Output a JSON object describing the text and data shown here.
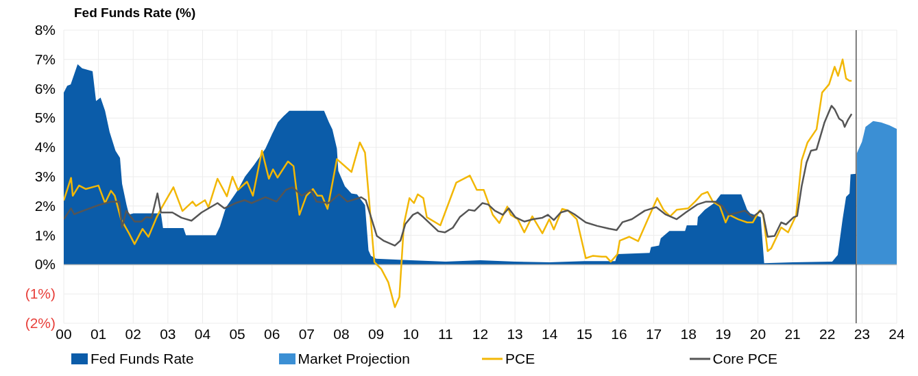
{
  "chart_data": {
    "type": "area",
    "title": "Fed Funds Rate (%)",
    "xlim": [
      2000,
      2024
    ],
    "xticks": [
      {
        "value": 2000,
        "label": "00"
      },
      {
        "value": 2001,
        "label": "01"
      },
      {
        "value": 2002,
        "label": "02"
      },
      {
        "value": 2003,
        "label": "03"
      },
      {
        "value": 2004,
        "label": "04"
      },
      {
        "value": 2005,
        "label": "05"
      },
      {
        "value": 2006,
        "label": "06"
      },
      {
        "value": 2007,
        "label": "07"
      },
      {
        "value": 2008,
        "label": "08"
      },
      {
        "value": 2009,
        "label": "09"
      },
      {
        "value": 2010,
        "label": "10"
      },
      {
        "value": 2011,
        "label": "11"
      },
      {
        "value": 2012,
        "label": "12"
      },
      {
        "value": 2013,
        "label": "13"
      },
      {
        "value": 2014,
        "label": "14"
      },
      {
        "value": 2015,
        "label": "15"
      },
      {
        "value": 2016,
        "label": "16"
      },
      {
        "value": 2017,
        "label": "17"
      },
      {
        "value": 2018,
        "label": "18"
      },
      {
        "value": 2019,
        "label": "19"
      },
      {
        "value": 2020,
        "label": "20"
      },
      {
        "value": 2021,
        "label": "21"
      },
      {
        "value": 2022,
        "label": "22"
      },
      {
        "value": 2023,
        "label": "23"
      },
      {
        "value": 2024,
        "label": "24"
      }
    ],
    "ylim": [
      -2,
      8
    ],
    "yticks": [
      {
        "value": -2,
        "label": "(2%)"
      },
      {
        "value": -1,
        "label": "(1%)"
      },
      {
        "value": 0,
        "label": "0%"
      },
      {
        "value": 1,
        "label": "1%"
      },
      {
        "value": 2,
        "label": "2%"
      },
      {
        "value": 3,
        "label": "3%"
      },
      {
        "value": 4,
        "label": "4%"
      },
      {
        "value": 5,
        "label": "5%"
      },
      {
        "value": 6,
        "label": "6%"
      },
      {
        "value": 7,
        "label": "7%"
      },
      {
        "value": 8,
        "label": "8%"
      }
    ],
    "grid": true,
    "legend": "bottom",
    "ref_lines": [
      {
        "axis": "x",
        "value": 2022.83,
        "color": "#555555"
      }
    ],
    "series": [
      {
        "name": "Fed Funds Rate",
        "color": "#0b5ca9",
        "x": [
          2000,
          2000.1,
          2000.2,
          2000.4,
          2000.53,
          2000.83,
          2000.93,
          2001.06,
          2001.19,
          2001.32,
          2001.49,
          2001.62,
          2001.68,
          2001.81,
          2001.88,
          2002.01,
          2002.8,
          2002.86,
          2003.2,
          2003.45,
          2003.52,
          2004.38,
          2004.5,
          2004.67,
          2005.02,
          2005.22,
          2005.48,
          2005.81,
          2006.0,
          2006.17,
          2006.33,
          2006.5,
          2007.5,
          2007.64,
          2007.74,
          2007.87,
          2007.91,
          2008.1,
          2008.29,
          2008.45,
          2008.68,
          2008.78,
          2008.85,
          2009.0,
          2010,
          2011,
          2012,
          2013,
          2014,
          2015,
          2015.89,
          2015.95,
          2016.88,
          2016.92,
          2017.15,
          2017.2,
          2017.45,
          2017.9,
          2017.95,
          2018.25,
          2018.27,
          2018.47,
          2018.74,
          2018.93,
          2019.52,
          2019.69,
          2019.78,
          2020.08,
          2020.18,
          2021,
          2022.14,
          2022.3,
          2022.44,
          2022.54,
          2022.64,
          2022.67,
          2022.83
        ],
        "values": [
          5.87,
          6.1,
          6.15,
          6.84,
          6.7,
          6.6,
          5.58,
          5.7,
          5.25,
          4.53,
          3.89,
          3.64,
          2.76,
          2.03,
          1.71,
          1.75,
          1.75,
          1.25,
          1.25,
          1.25,
          1.0,
          1.0,
          1.3,
          1.95,
          2.55,
          3.0,
          3.4,
          3.96,
          4.45,
          4.86,
          5.06,
          5.25,
          5.25,
          4.86,
          4.61,
          3.96,
          3.2,
          2.67,
          2.43,
          2.4,
          2.03,
          0.49,
          0.3,
          0.2,
          0.15,
          0.1,
          0.15,
          0.1,
          0.08,
          0.12,
          0.12,
          0.36,
          0.4,
          0.6,
          0.65,
          0.9,
          1.15,
          1.15,
          1.34,
          1.34,
          1.62,
          1.87,
          2.1,
          2.4,
          2.4,
          1.87,
          1.75,
          1.62,
          0.05,
          0.08,
          0.1,
          0.33,
          1.55,
          2.31,
          2.43,
          3.08,
          3.1
        ]
      },
      {
        "name": "Market Projection",
        "color": "#3b8fd4",
        "x": [
          2022.85,
          2023.0,
          2023.1,
          2023.32,
          2023.55,
          2023.79,
          2024.0
        ],
        "values": [
          3.8,
          4.2,
          4.7,
          4.9,
          4.85,
          4.75,
          4.63
        ]
      },
      {
        "name": "PCE",
        "type": "line",
        "color": "#f2b705",
        "x": [
          2000.0,
          2000.21,
          2000.26,
          2000.44,
          2000.63,
          2001.0,
          2001.19,
          2001.36,
          2001.47,
          2001.65,
          2001.88,
          2002.04,
          2002.27,
          2002.44,
          2002.67,
          2002.8,
          2003.16,
          2003.42,
          2003.71,
          2003.81,
          2004.07,
          2004.17,
          2004.43,
          2004.7,
          2004.86,
          2005.02,
          2005.28,
          2005.45,
          2005.71,
          2005.91,
          2006.03,
          2006.16,
          2006.46,
          2006.62,
          2006.79,
          2006.99,
          2007.18,
          2007.31,
          2007.44,
          2007.6,
          2007.87,
          2008.29,
          2008.53,
          2008.68,
          2008.95,
          2009.15,
          2009.35,
          2009.54,
          2009.67,
          2009.8,
          2009.96,
          2010.09,
          2010.2,
          2010.36,
          2010.46,
          2010.85,
          2011.31,
          2011.7,
          2011.9,
          2012.1,
          2012.36,
          2012.55,
          2012.78,
          2012.88,
          2013.08,
          2013.27,
          2013.5,
          2013.79,
          2013.99,
          2014.12,
          2014.36,
          2014.52,
          2014.78,
          2015.04,
          2015.24,
          2015.5,
          2015.63,
          2015.76,
          2015.95,
          2016.02,
          2016.29,
          2016.55,
          2016.81,
          2017.1,
          2017.28,
          2017.47,
          2017.66,
          2017.99,
          2018.19,
          2018.38,
          2018.55,
          2018.7,
          2018.9,
          2019.07,
          2019.17,
          2019.43,
          2019.69,
          2019.85,
          2020.05,
          2020.15,
          2020.28,
          2020.38,
          2020.67,
          2020.87,
          2021.1,
          2021.26,
          2021.43,
          2021.69,
          2021.85,
          2022.05,
          2022.21,
          2022.31,
          2022.44,
          2022.54,
          2022.64,
          2022.7
        ],
        "values": [
          2.19,
          2.96,
          2.35,
          2.7,
          2.58,
          2.7,
          2.1,
          2.52,
          2.35,
          1.55,
          1.07,
          0.7,
          1.22,
          0.95,
          1.6,
          1.9,
          2.64,
          1.83,
          2.15,
          2.0,
          2.2,
          1.95,
          2.93,
          2.33,
          3.0,
          2.55,
          2.83,
          2.35,
          3.89,
          2.93,
          3.25,
          2.97,
          3.52,
          3.36,
          1.7,
          2.35,
          2.58,
          2.35,
          2.35,
          1.9,
          3.6,
          3.16,
          4.17,
          3.82,
          0.09,
          -0.15,
          -0.6,
          -1.45,
          -1.1,
          1.38,
          2.27,
          2.1,
          2.4,
          2.27,
          1.62,
          1.34,
          2.8,
          3.04,
          2.55,
          2.55,
          1.7,
          1.42,
          1.98,
          1.7,
          1.55,
          1.1,
          1.65,
          1.07,
          1.55,
          1.2,
          1.9,
          1.85,
          1.55,
          0.22,
          0.3,
          0.27,
          0.27,
          0.1,
          0.35,
          0.82,
          0.95,
          0.8,
          1.5,
          2.27,
          1.87,
          1.65,
          1.87,
          1.92,
          2.15,
          2.4,
          2.48,
          2.15,
          2.0,
          1.44,
          1.7,
          1.55,
          1.44,
          1.44,
          1.85,
          1.72,
          0.46,
          0.55,
          1.27,
          1.1,
          1.68,
          3.56,
          4.17,
          4.62,
          5.87,
          6.15,
          6.75,
          6.44,
          7.0,
          6.35,
          6.27,
          6.27
        ]
      },
      {
        "name": "Core PCE",
        "type": "line",
        "color": "#555555",
        "x": [
          2000.0,
          2000.21,
          2000.3,
          2000.63,
          2001.0,
          2001.36,
          2001.6,
          2001.68,
          2001.8,
          2002.04,
          2002.24,
          2002.37,
          2002.53,
          2002.7,
          2002.8,
          2003.13,
          2003.39,
          2003.68,
          2003.97,
          2004.43,
          2004.63,
          2004.95,
          2005.21,
          2005.41,
          2005.81,
          2006.13,
          2006.4,
          2006.59,
          2006.86,
          2007.12,
          2007.28,
          2007.64,
          2007.93,
          2008.17,
          2008.57,
          2008.7,
          2009.02,
          2009.21,
          2009.54,
          2009.7,
          2009.84,
          2010.06,
          2010.2,
          2010.36,
          2010.79,
          2010.98,
          2011.21,
          2011.41,
          2011.67,
          2011.84,
          2012.06,
          2012.23,
          2012.42,
          2012.65,
          2012.82,
          2013.01,
          2013.27,
          2013.53,
          2013.79,
          2013.95,
          2014.12,
          2014.32,
          2014.52,
          2014.71,
          2015.04,
          2015.37,
          2015.7,
          2015.93,
          2016.1,
          2016.37,
          2016.74,
          2017.07,
          2017.33,
          2017.66,
          2017.92,
          2018.25,
          2018.51,
          2018.77,
          2018.97,
          2019.17,
          2019.43,
          2019.62,
          2019.85,
          2020.08,
          2020.15,
          2020.28,
          2020.48,
          2020.67,
          2020.81,
          2021.03,
          2021.13,
          2021.26,
          2021.4,
          2021.53,
          2021.69,
          2021.92,
          2022.12,
          2022.21,
          2022.34,
          2022.44,
          2022.5,
          2022.6,
          2022.7
        ],
        "values": [
          1.55,
          1.92,
          1.72,
          1.87,
          2.03,
          2.15,
          2.15,
          1.26,
          1.84,
          1.47,
          1.47,
          1.62,
          1.6,
          2.43,
          1.78,
          1.78,
          1.6,
          1.5,
          1.78,
          2.1,
          1.92,
          2.1,
          2.2,
          2.1,
          2.3,
          2.15,
          2.55,
          2.64,
          2.35,
          2.55,
          2.15,
          2.1,
          2.4,
          2.15,
          2.3,
          2.2,
          0.98,
          0.82,
          0.65,
          0.82,
          1.38,
          1.7,
          1.78,
          1.62,
          1.14,
          1.1,
          1.26,
          1.62,
          1.87,
          1.84,
          2.1,
          2.05,
          1.84,
          1.7,
          1.92,
          1.62,
          1.47,
          1.55,
          1.6,
          1.7,
          1.52,
          1.78,
          1.85,
          1.72,
          1.44,
          1.32,
          1.23,
          1.18,
          1.45,
          1.55,
          1.84,
          1.96,
          1.72,
          1.55,
          1.78,
          2.05,
          2.15,
          2.15,
          2.0,
          1.7,
          1.78,
          1.84,
          1.62,
          1.84,
          1.72,
          0.95,
          0.98,
          1.44,
          1.37,
          1.62,
          1.66,
          2.67,
          3.48,
          3.89,
          3.93,
          4.86,
          5.42,
          5.3,
          4.98,
          4.9,
          4.7,
          4.95,
          5.14
        ]
      }
    ]
  }
}
